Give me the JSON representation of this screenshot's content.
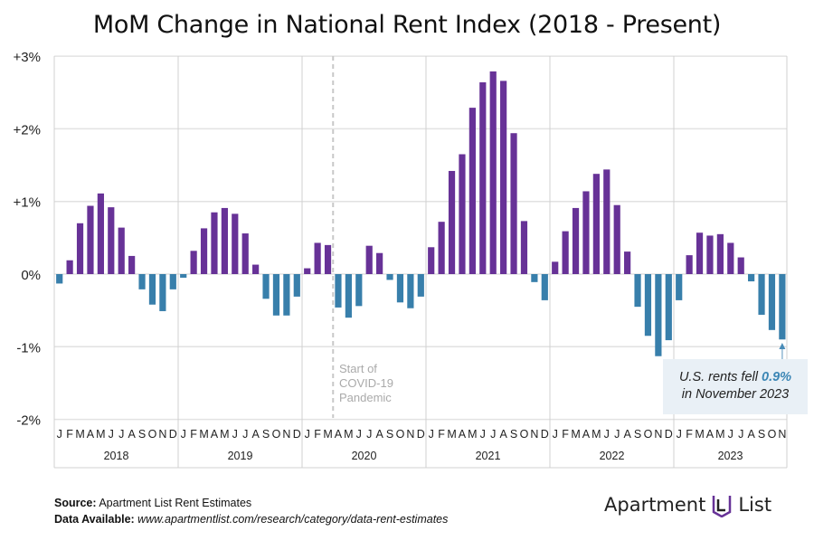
{
  "chart_data": {
    "type": "bar",
    "title": "MoM Change in National Rent Index (2018 - Present)",
    "xlabel": "",
    "ylabel": "",
    "ylim": [
      -2,
      3
    ],
    "yticks": [
      "+3%",
      "+2%",
      "+1%",
      "0%",
      "-1%",
      "-2%"
    ],
    "ytick_values": [
      3,
      2,
      1,
      0,
      -1,
      -2
    ],
    "years": [
      "2018",
      "2019",
      "2020",
      "2021",
      "2022",
      "2023"
    ],
    "month_labels": [
      "J",
      "F",
      "M",
      "A",
      "M",
      "J",
      "J",
      "A",
      "S",
      "O",
      "N",
      "D"
    ],
    "values": [
      -0.13,
      0.19,
      0.7,
      0.94,
      1.11,
      0.92,
      0.64,
      0.25,
      -0.21,
      -0.42,
      -0.51,
      -0.21,
      -0.05,
      0.32,
      0.63,
      0.85,
      0.91,
      0.83,
      0.56,
      0.13,
      -0.34,
      -0.57,
      -0.57,
      -0.31,
      0.08,
      0.43,
      0.4,
      -0.46,
      -0.6,
      -0.44,
      0.39,
      0.29,
      -0.08,
      -0.39,
      -0.47,
      -0.31,
      0.37,
      0.72,
      1.42,
      1.65,
      2.29,
      2.64,
      2.79,
      2.66,
      1.94,
      0.73,
      -0.11,
      -0.36,
      0.17,
      0.59,
      0.91,
      1.14,
      1.38,
      1.44,
      0.95,
      0.31,
      -0.45,
      -0.85,
      -1.13,
      -0.91,
      -0.36,
      0.26,
      0.57,
      0.53,
      0.55,
      0.43,
      0.23,
      -0.1,
      -0.56,
      -0.77,
      -0.9
    ],
    "colors": {
      "positive": "#673297",
      "negative": "#387fab"
    },
    "annotations": {
      "covid": [
        "Start of",
        "COVID-19",
        "Pandemic"
      ],
      "callout_pre": "U.S. rents fell ",
      "callout_value": "0.9%",
      "callout_post": "in November 2023"
    }
  },
  "footer": {
    "source_label": "Source:",
    "source_text": " Apartment List Rent Estimates",
    "avail_label": "Data Available:",
    "avail_text": " www.apartmentlist.com/research/category/data-rent-estimates"
  },
  "logo": {
    "left": "Apartment",
    "right": "List"
  }
}
